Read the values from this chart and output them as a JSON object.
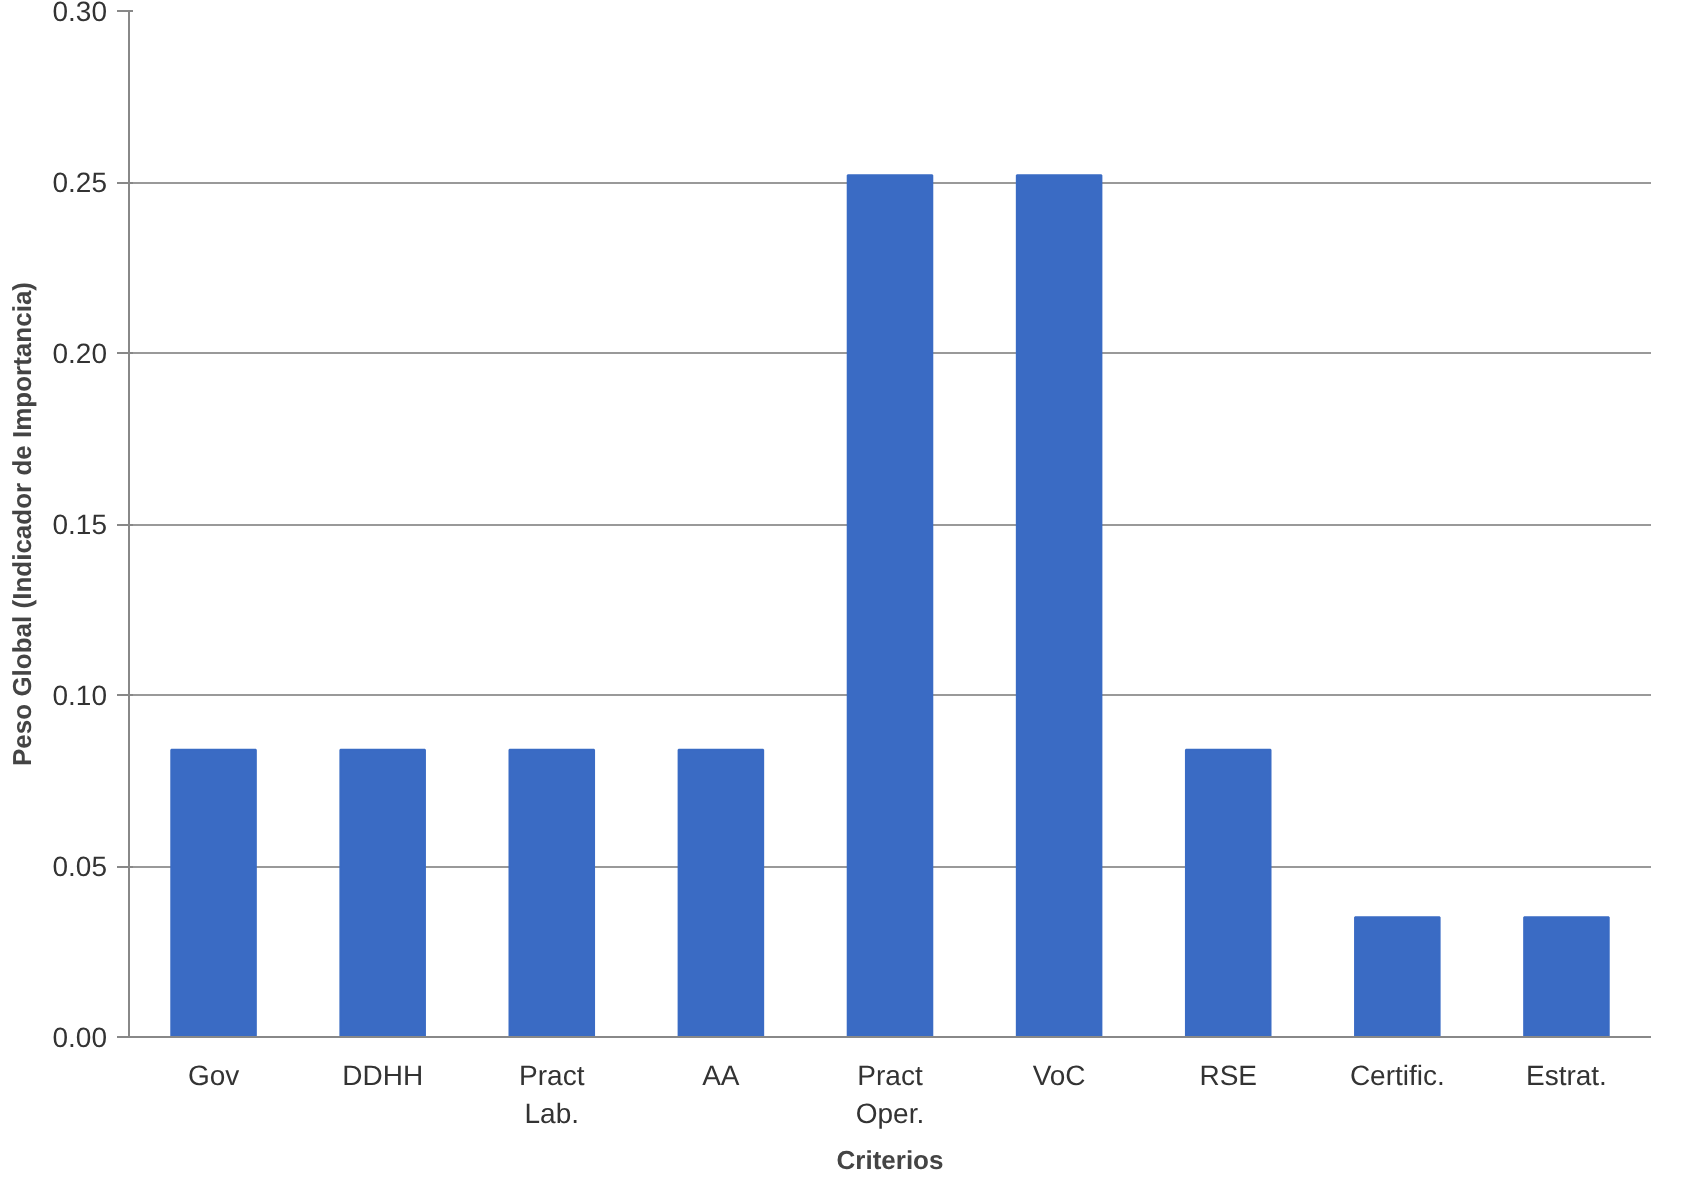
{
  "chart_data": {
    "type": "bar",
    "xlabel": "Criterios",
    "ylabel": "Peso Global (Indicador de Importancia)",
    "categories": [
      "Gov",
      "DDHH",
      "Pract\nLab.",
      "AA",
      "Pract\nOper.",
      "VoC",
      "RSE",
      "Certific.",
      "Estrat."
    ],
    "values": [
      0.084,
      0.084,
      0.084,
      0.084,
      0.252,
      0.252,
      0.084,
      0.035,
      0.035
    ],
    "color": "#3a6bc4",
    "ylim": [
      0,
      0.3
    ],
    "yticks": [
      {
        "value": 0,
        "label": "0.00"
      },
      {
        "value": 0.05,
        "label": "0.05"
      },
      {
        "value": 0.1,
        "label": "0.10"
      },
      {
        "value": 0.15,
        "label": "0.15"
      },
      {
        "value": 0.2,
        "label": "0.20"
      },
      {
        "value": 0.25,
        "label": "0.25"
      },
      {
        "value": 0.3,
        "label": "0.30"
      }
    ],
    "grid": "y"
  }
}
